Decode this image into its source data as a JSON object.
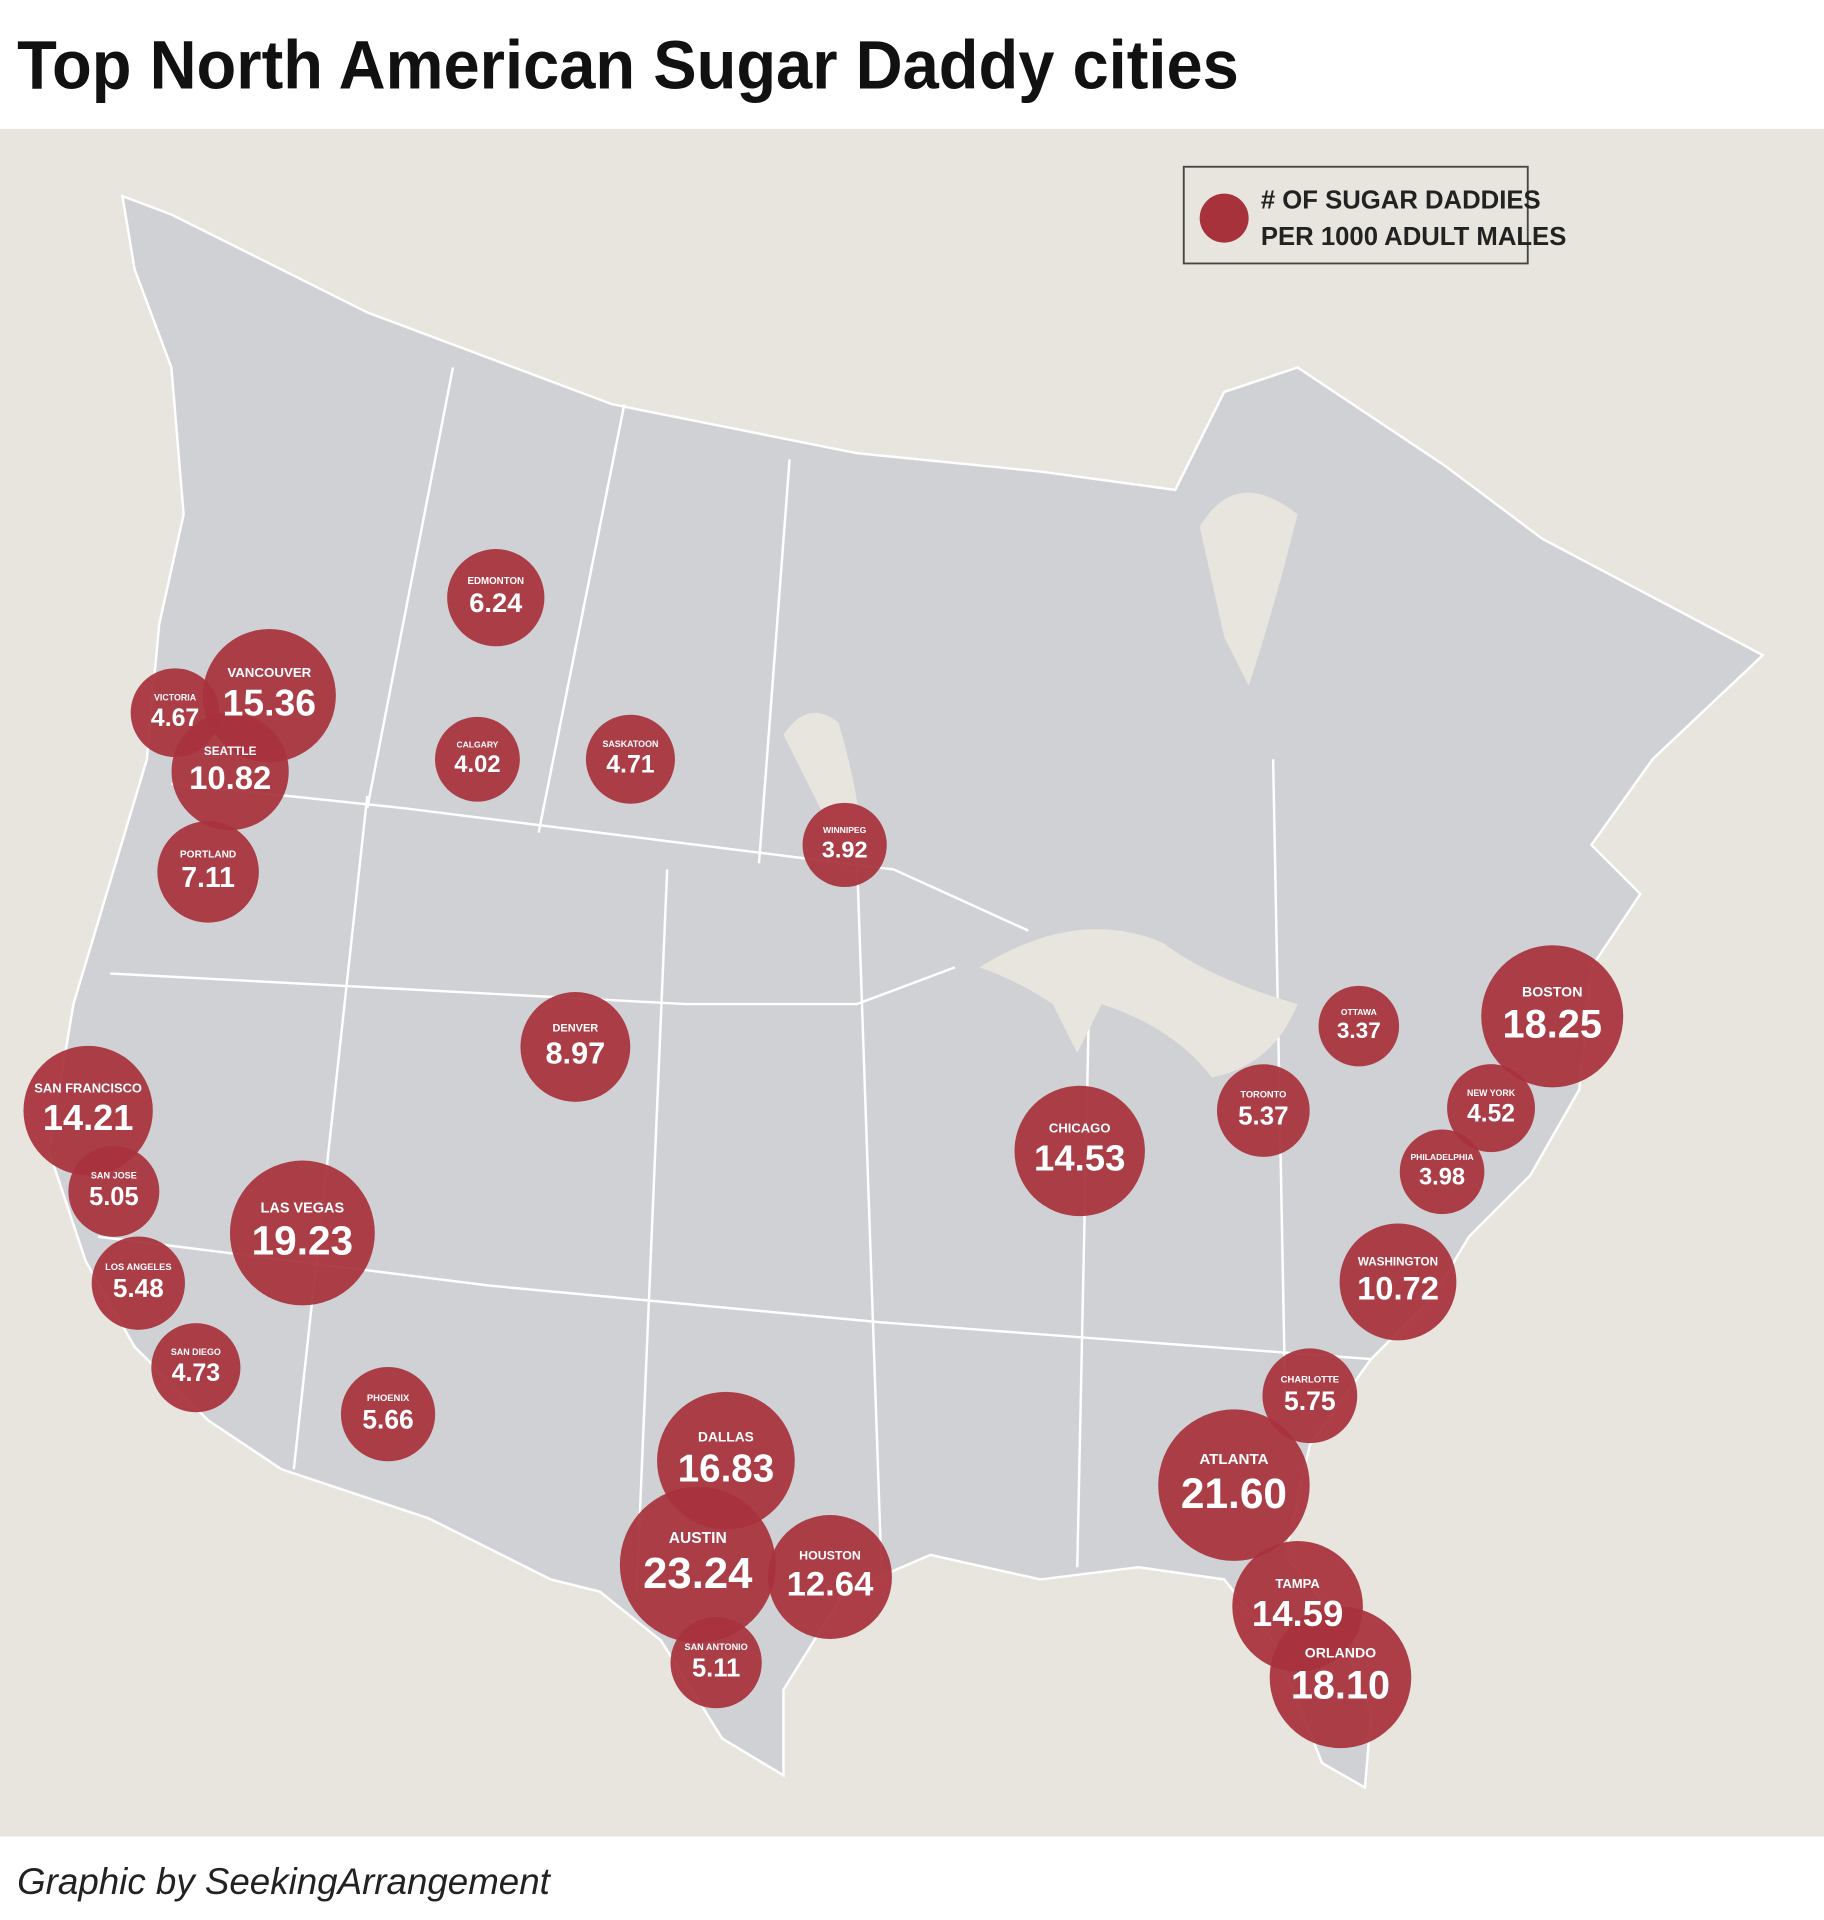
{
  "chart_data": {
    "type": "bubble-map",
    "title": "Top North American Sugar Daddy cities",
    "legend_lines": [
      "# OF SUGAR DADDIES",
      "PER 1000 ADULT MALES"
    ],
    "source": "Graphic by SeekingArrangement",
    "color": "#a8323c",
    "categories": [
      "EDMONTON",
      "VANCOUVER",
      "VICTORIA",
      "SEATTLE",
      "CALGARY",
      "SASKATOON",
      "WINNIPEG",
      "PORTLAND",
      "DENVER",
      "SAN FRANCISCO",
      "SAN JOSE",
      "LAS VEGAS",
      "LOS ANGELES",
      "SAN DIEGO",
      "PHOENIX",
      "DALLAS",
      "AUSTIN",
      "HOUSTON",
      "SAN ANTONIO",
      "CHICAGO",
      "TORONTO",
      "OTTAWA",
      "BOSTON",
      "NEW YORK",
      "PHILADELPHIA",
      "WASHINGTON",
      "CHARLOTTE",
      "ATLANTA",
      "TAMPA",
      "ORLANDO"
    ],
    "values": [
      6.24,
      15.36,
      4.67,
      10.82,
      4.02,
      4.71,
      3.92,
      7.11,
      8.97,
      14.21,
      5.05,
      19.23,
      5.48,
      4.73,
      5.66,
      16.83,
      23.24,
      12.64,
      5.11,
      14.53,
      5.37,
      3.37,
      18.25,
      4.52,
      3.98,
      10.72,
      5.75,
      21.6,
      14.59,
      18.1
    ],
    "value_labels": [
      "6.24",
      "15.36",
      "4.67",
      "10.82",
      "4.02",
      "4.71",
      "3.92",
      "7.11",
      "8.97",
      "14.21",
      "5.05",
      "19.23",
      "5.48",
      "4.73",
      "5.66",
      "16.83",
      "23.24",
      "12.64",
      "5.11",
      "14.53",
      "5.37",
      "3.37",
      "18.25",
      "4.52",
      "3.98",
      "10.72",
      "5.75",
      "21.60",
      "14.59",
      "18.10"
    ]
  }
}
